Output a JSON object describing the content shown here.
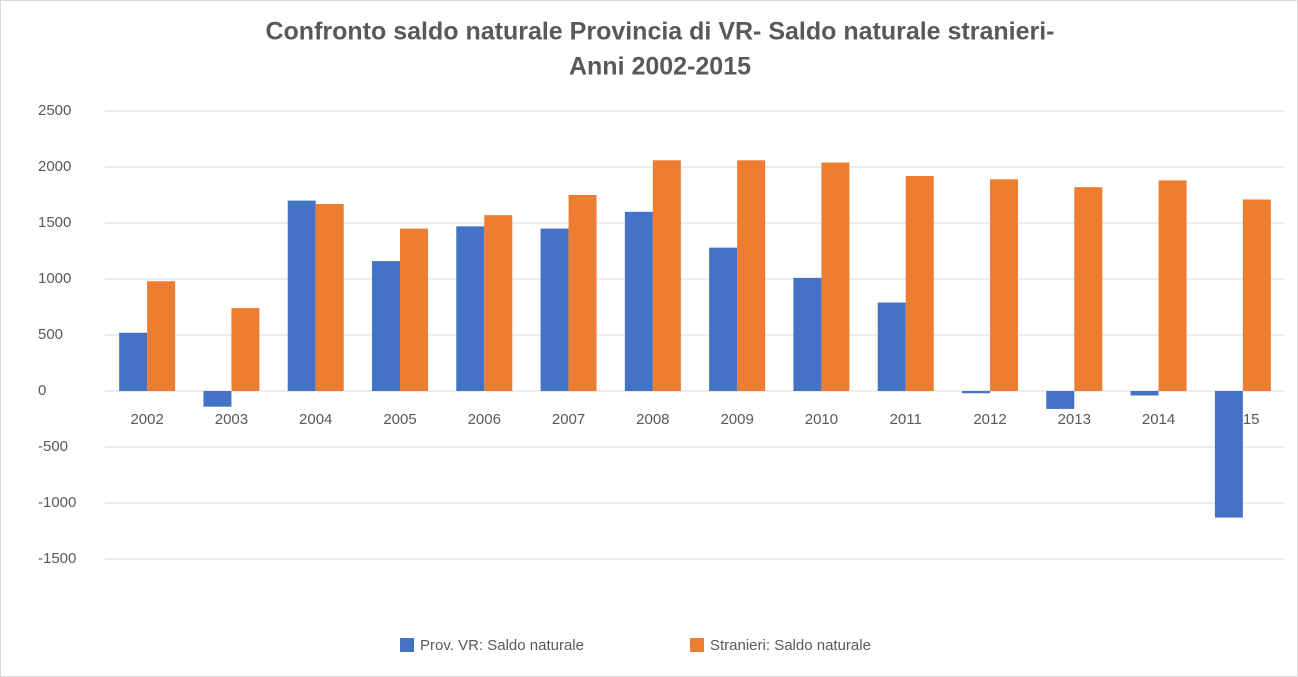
{
  "chart_data": {
    "type": "bar",
    "title": [
      "Confronto saldo naturale Provincia di VR- Saldo naturale stranieri-",
      "Anni 2002-2015"
    ],
    "categories": [
      "2002",
      "2003",
      "2004",
      "2005",
      "2006",
      "2007",
      "2008",
      "2009",
      "2010",
      "2011",
      "2012",
      "2013",
      "2014",
      "2015"
    ],
    "series": [
      {
        "name": "Prov. VR: Saldo naturale",
        "color": "#4472c4",
        "values": [
          520,
          -140,
          1700,
          1160,
          1470,
          1450,
          1600,
          1280,
          1010,
          790,
          -20,
          -160,
          -40,
          -1130
        ]
      },
      {
        "name": "Stranieri: Saldo naturale",
        "color": "#ed7d31",
        "values": [
          980,
          740,
          1670,
          1450,
          1570,
          1750,
          2060,
          2060,
          2040,
          1920,
          1890,
          1820,
          1880,
          1710
        ]
      }
    ],
    "ylim": [
      -1500,
      2500
    ],
    "yticks": [
      -1500,
      -1000,
      -500,
      0,
      500,
      1000,
      1500,
      2000,
      2500
    ],
    "grid": true,
    "legend": "bottom"
  }
}
